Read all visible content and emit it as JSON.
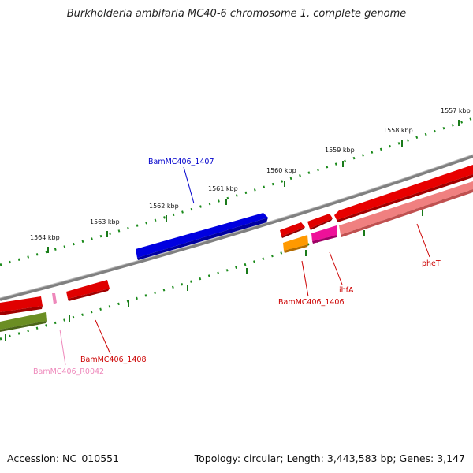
{
  "title": "Burkholderia ambifaria MC40-6 chromosome 1, complete genome",
  "footer": {
    "accession": "Accession: NC_010551",
    "stats": "Topology: circular; Length: 3,443,583 bp; Genes: 3,147"
  },
  "ticks": [
    "1564 kbp",
    "1563 kbp",
    "1562 kbp",
    "1561 kbp",
    "1560 kbp",
    "1559 kbp",
    "1558 kbp",
    "1557 kbp"
  ],
  "genes": [
    {
      "id": "BamMC406_1407",
      "label": "BamMC406_1407",
      "color": "#0000dd"
    },
    {
      "id": "BamMC406_1406",
      "label": "BamMC406_1406",
      "color": "#cc0000"
    },
    {
      "id": "ihfA",
      "label": "ihfA",
      "color": "#cc0000"
    },
    {
      "id": "pheT",
      "label": "pheT",
      "color": "#cc0000"
    },
    {
      "id": "BamMC406_1408",
      "label": "BamMC406_1408",
      "color": "#cc0000"
    },
    {
      "id": "BamMC406_R0042",
      "label": "BamMC406_R0042",
      "color": "#ee88bb"
    }
  ]
}
